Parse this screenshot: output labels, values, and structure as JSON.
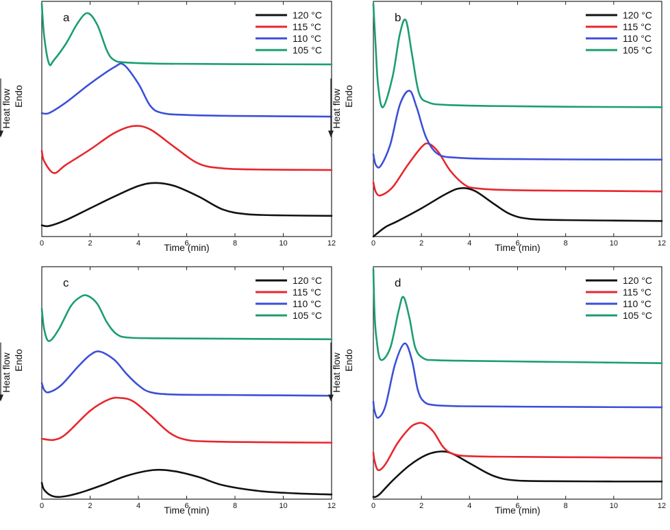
{
  "figure": {
    "ylabel_line1": "Heat flow",
    "ylabel_line2": "Endo",
    "xlabel": "Time (min)"
  },
  "legend_labels": [
    "120 °C",
    "115 °C",
    "110 °C",
    "105 °C"
  ],
  "colors": {
    "120": "#111111",
    "115": "#e8262d",
    "110": "#3b4fd8",
    "105": "#1a9e6e"
  },
  "chart_data": [
    {
      "type": "line",
      "panel": "a",
      "xlabel": "Time (min)",
      "ylabel": "Heat flow Endo",
      "xlim": [
        0,
        12
      ],
      "xticks": [
        0,
        2,
        4,
        6,
        8,
        10,
        12
      ],
      "y_tick_labels": false,
      "legend_position": "top-right",
      "series": [
        {
          "name": "120 °C",
          "color": "#111111",
          "x": [
            0,
            0.3,
            1,
            2,
            3,
            4,
            4.7,
            5.5,
            6.5,
            7.5,
            8.5,
            10,
            12
          ],
          "y": [
            4.8,
            4.5,
            7,
            12,
            17,
            21.5,
            22.8,
            21.5,
            17,
            11.5,
            9.5,
            9,
            8.8
          ]
        },
        {
          "name": "115 °C",
          "color": "#e8262d",
          "x": [
            0,
            0.1,
            0.5,
            1,
            2,
            3,
            3.8,
            4.5,
            5.5,
            6.5,
            7.5,
            9,
            12
          ],
          "y": [
            36.5,
            32,
            27,
            30.5,
            37,
            44,
            47,
            45.5,
            38,
            31,
            29,
            28.5,
            28.3
          ]
        },
        {
          "name": "110 °C",
          "color": "#3b4fd8",
          "x": [
            0,
            0.3,
            1,
            2,
            3,
            3.4,
            4,
            4.5,
            5,
            6,
            8,
            12
          ],
          "y": [
            52.5,
            52.5,
            57,
            65,
            72,
            73,
            65,
            55.5,
            52.5,
            51.7,
            51.3,
            51
          ]
        },
        {
          "name": "105 °C",
          "color": "#1a9e6e",
          "x": [
            0,
            0.1,
            0.3,
            0.5,
            1,
            1.5,
            1.9,
            2.3,
            2.7,
            3,
            3.5,
            5,
            8,
            12
          ],
          "y": [
            99,
            85,
            73.5,
            75,
            82,
            91,
            95,
            90,
            79,
            75,
            74,
            73.5,
            73.3,
            73.2
          ]
        }
      ]
    },
    {
      "type": "line",
      "panel": "b",
      "xlabel": "Time (min)",
      "ylabel": "Heat flow Endo",
      "xlim": [
        0,
        12
      ],
      "xticks": [
        0,
        2,
        4,
        6,
        8,
        10,
        12
      ],
      "y_tick_labels": false,
      "legend_position": "top-right",
      "series": [
        {
          "name": "120 °C",
          "color": "#111111",
          "x": [
            0,
            0.5,
            1,
            2,
            3,
            3.6,
            4.2,
            5,
            5.7,
            6.5,
            8,
            10,
            12
          ],
          "y": [
            0,
            4,
            6.5,
            12,
            18,
            20.5,
            19.5,
            14,
            9.5,
            7.5,
            7,
            6.8,
            6.6
          ]
        },
        {
          "name": "115 °C",
          "color": "#e8262d",
          "x": [
            0,
            0.1,
            0.3,
            0.8,
            1.4,
            2,
            2.3,
            2.7,
            3.2,
            3.8,
            4.3,
            5.5,
            8,
            12
          ],
          "y": [
            23,
            19,
            17.5,
            21,
            30,
            38,
            39.5,
            36,
            28,
            22,
            20.5,
            19.8,
            19.5,
            19.2
          ]
        },
        {
          "name": "110 °C",
          "color": "#3b4fd8",
          "x": [
            0,
            0.1,
            0.3,
            0.7,
            1.1,
            1.5,
            1.8,
            2.2,
            2.7,
            3.5,
            5,
            8,
            12
          ],
          "y": [
            35,
            30.5,
            30,
            39,
            56,
            62,
            55,
            42,
            35,
            33.5,
            33,
            32.8,
            32.7
          ]
        },
        {
          "name": "105 °C",
          "color": "#1a9e6e",
          "x": [
            0,
            0.1,
            0.2,
            0.4,
            0.8,
            1.1,
            1.35,
            1.6,
            1.9,
            2.3,
            3,
            5,
            8,
            12
          ],
          "y": [
            99,
            80,
            64,
            55,
            68,
            86,
            92,
            78,
            61,
            57,
            56,
            55.5,
            55.2,
            55
          ]
        }
      ]
    },
    {
      "type": "line",
      "panel": "c",
      "xlabel": "Time (min)",
      "ylabel": "Heat flow Endo",
      "xlim": [
        0,
        12
      ],
      "xticks": [
        0,
        2,
        4,
        6,
        8,
        10,
        12
      ],
      "y_tick_labels": false,
      "legend_position": "top-right",
      "series": [
        {
          "name": "120 °C",
          "color": "#111111",
          "x": [
            0,
            0.1,
            0.4,
            0.8,
            1.5,
            2.5,
            3.5,
            4.6,
            5.5,
            6.5,
            7.5,
            9,
            10.5,
            12
          ],
          "y": [
            7,
            4,
            1.5,
            1,
            2.5,
            6,
            10,
            12.5,
            12,
            9.5,
            6,
            3.5,
            2.5,
            2
          ]
        },
        {
          "name": "115 °C",
          "color": "#e8262d",
          "x": [
            0,
            0.5,
            1,
            2,
            2.8,
            3.3,
            3.8,
            4.5,
            5.3,
            6,
            7,
            9,
            12
          ],
          "y": [
            26,
            25.5,
            28,
            38,
            43,
            43.5,
            42,
            36,
            28.5,
            25.5,
            24.8,
            24.5,
            24.3
          ]
        },
        {
          "name": "110 °C",
          "color": "#3b4fd8",
          "x": [
            0,
            0.1,
            0.3,
            0.8,
            1.5,
            2,
            2.4,
            3,
            3.5,
            4,
            4.5,
            5.5,
            8,
            12
          ],
          "y": [
            50,
            47,
            46,
            49,
            57,
            62,
            63.5,
            60,
            54,
            49,
            46,
            45,
            44.8,
            44.5
          ]
        },
        {
          "name": "105 °C",
          "color": "#1a9e6e",
          "x": [
            0,
            0.1,
            0.3,
            0.7,
            1.2,
            1.6,
            1.9,
            2.3,
            2.7,
            3.1,
            3.6,
            5,
            8,
            12
          ],
          "y": [
            82,
            73,
            68,
            73,
            83,
            87,
            87.5,
            84,
            76,
            71,
            69.5,
            69.2,
            69,
            68.8
          ]
        }
      ]
    },
    {
      "type": "line",
      "panel": "d",
      "xlabel": "Time (min)",
      "ylabel": "Heat flow Endo",
      "xlim": [
        0,
        12
      ],
      "xticks": [
        0,
        2,
        4,
        6,
        8,
        10,
        12
      ],
      "y_tick_labels": false,
      "legend_position": "top-right",
      "series": [
        {
          "name": "120 °C",
          "color": "#111111",
          "x": [
            0,
            0.1,
            0.3,
            0.8,
            1.5,
            2.2,
            2.8,
            3.3,
            4,
            5,
            6,
            8,
            10,
            12
          ],
          "y": [
            1,
            1,
            2.5,
            8,
            14.5,
            19,
            20.5,
            19.5,
            15.5,
            10,
            8,
            7.7,
            7.6,
            7.6
          ]
        },
        {
          "name": "115 °C",
          "color": "#e8262d",
          "x": [
            0,
            0.05,
            0.2,
            0.5,
            1,
            1.5,
            1.8,
            2.1,
            2.5,
            2.9,
            3.3,
            4,
            6,
            9,
            12
          ],
          "y": [
            20,
            16.5,
            12.5,
            15,
            24,
            30.5,
            32.5,
            32.5,
            29,
            22.5,
            19.5,
            18.5,
            18.2,
            18,
            17.8
          ]
        },
        {
          "name": "110 °C",
          "color": "#3b4fd8",
          "x": [
            0,
            0.05,
            0.2,
            0.5,
            0.9,
            1.3,
            1.6,
            1.85,
            2.1,
            2.5,
            3.5,
            6,
            12
          ],
          "y": [
            42,
            38,
            35,
            40,
            58,
            67,
            60,
            47,
            42,
            40.5,
            40,
            39.8,
            39.5
          ]
        },
        {
          "name": "105 °C",
          "color": "#1a9e6e",
          "x": [
            0,
            0.05,
            0.12,
            0.3,
            0.7,
            1.05,
            1.25,
            1.5,
            1.75,
            2.1,
            2.6,
            4,
            8,
            12
          ],
          "y": [
            99,
            80,
            70,
            60,
            65,
            81,
            87,
            78,
            65,
            60.5,
            59.8,
            59.5,
            59,
            58.5
          ]
        }
      ]
    }
  ]
}
